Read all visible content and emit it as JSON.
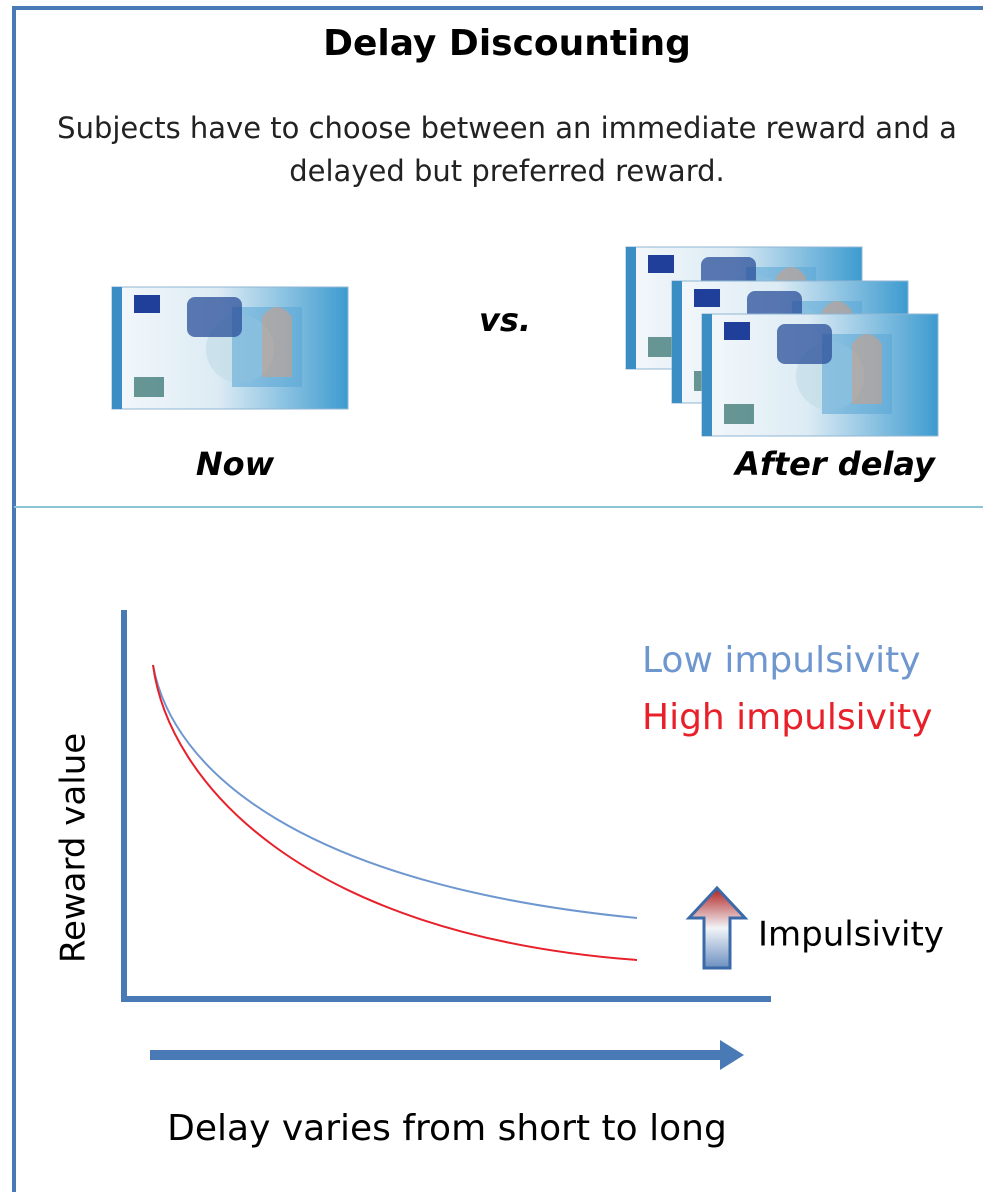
{
  "header": {
    "title": "Delay Discounting",
    "description_lines": [
      "Subjects have to choose between an immediate reward and a",
      "delayed but preferred reward."
    ]
  },
  "choice": {
    "left_label": "Now",
    "separator": "vs.",
    "right_label": "After delay"
  },
  "graph": {
    "y_axis_label": "Reward value",
    "legend": [
      "Low impulsivity",
      "High impulsivity"
    ],
    "arrow_label": "Impulsivity",
    "x_axis_label": "Delay varies from short to long"
  }
}
